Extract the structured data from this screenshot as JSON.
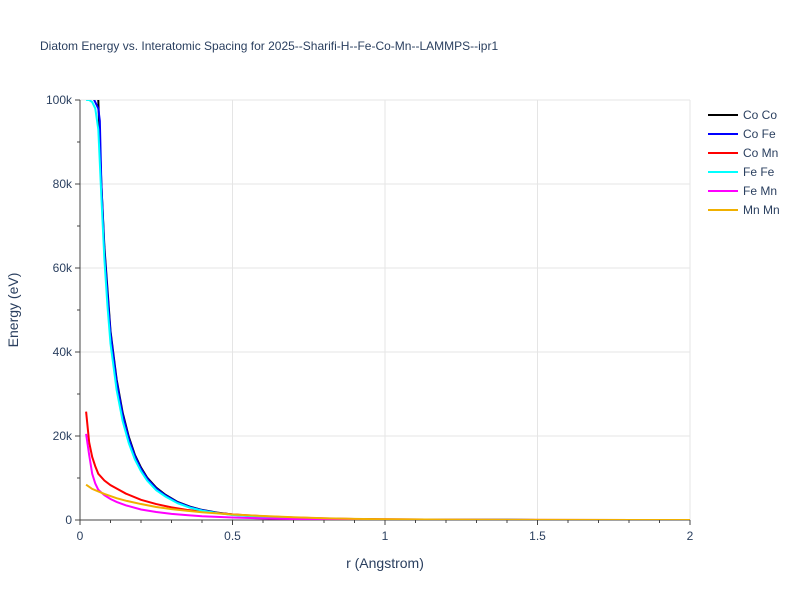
{
  "chart_data": {
    "type": "line",
    "title": "Diatom Energy vs. Interatomic Spacing for 2025--Sharifi-H--Fe-Co-Mn--LAMMPS--ipr1",
    "xlabel": "r (Angstrom)",
    "ylabel": "Energy (eV)",
    "xlim": [
      0,
      2
    ],
    "ylim": [
      0,
      100000
    ],
    "x_ticks": [
      0,
      0.5,
      1,
      1.5,
      2
    ],
    "x_tick_labels": [
      "0",
      "0.5",
      "1",
      "1.5",
      "2"
    ],
    "y_ticks": [
      0,
      20000,
      40000,
      60000,
      80000,
      100000
    ],
    "y_tick_labels": [
      "0",
      "20k",
      "40k",
      "60k",
      "80k",
      "100k"
    ],
    "grid": true,
    "legend_position": "top-right",
    "series": [
      {
        "name": "Co Co",
        "color": "#000000",
        "x": [
          0.04,
          0.06,
          0.07,
          0.08,
          0.09,
          0.1,
          0.12,
          0.14,
          0.16,
          0.18,
          0.2,
          0.22,
          0.25,
          0.28,
          0.32,
          0.36,
          0.4,
          0.45,
          0.5,
          0.6,
          0.7,
          0.8,
          0.9,
          1.0,
          1.2,
          1.5,
          1.8,
          2.0
        ],
        "y": [
          102000,
          100000,
          80000,
          65000,
          55000,
          45000,
          33500,
          25500,
          19800,
          15500,
          12500,
          10100,
          7700,
          6000,
          4300,
          3200,
          2400,
          1750,
          1300,
          800,
          520,
          320,
          180,
          100,
          40,
          10,
          0,
          0
        ]
      },
      {
        "name": "Co Fe",
        "color": "#0000ff",
        "x": [
          0.04,
          0.06,
          0.065,
          0.07,
          0.08,
          0.09,
          0.1,
          0.12,
          0.14,
          0.16,
          0.18,
          0.2,
          0.22,
          0.25,
          0.28,
          0.32,
          0.36,
          0.4,
          0.45,
          0.5,
          0.6,
          0.7,
          0.8,
          0.9,
          1.0,
          1.2,
          1.5,
          1.8,
          2.0
        ],
        "y": [
          101000,
          98000,
          95000,
          80000,
          64000,
          54000,
          44500,
          33000,
          25000,
          19400,
          15200,
          12200,
          9900,
          7500,
          5850,
          4200,
          3100,
          2350,
          1700,
          1250,
          780,
          500,
          310,
          175,
          95,
          38,
          10,
          0,
          0
        ]
      },
      {
        "name": "Co Mn",
        "color": "#ff0000",
        "x": [
          0.02,
          0.03,
          0.04,
          0.05,
          0.06,
          0.08,
          0.1,
          0.12,
          0.15,
          0.2,
          0.25,
          0.3,
          0.35,
          0.4,
          0.5,
          0.6,
          0.7,
          0.8,
          0.9,
          1.0,
          1.2,
          1.5,
          2.0
        ],
        "y": [
          25800,
          18500,
          15000,
          12800,
          11000,
          9400,
          8300,
          7500,
          6300,
          4800,
          3800,
          3000,
          2400,
          2000,
          1350,
          900,
          600,
          380,
          250,
          170,
          80,
          30,
          0
        ]
      },
      {
        "name": "Fe Fe",
        "color": "#00ffff",
        "x": [
          0.02,
          0.03,
          0.04,
          0.05,
          0.06,
          0.07,
          0.08,
          0.09,
          0.1,
          0.12,
          0.14,
          0.16,
          0.18,
          0.2,
          0.22,
          0.25,
          0.28,
          0.32,
          0.36,
          0.4,
          0.45,
          0.5,
          0.6,
          0.7,
          0.8,
          0.9,
          1.0,
          1.2,
          1.5,
          1.8,
          2.0
        ],
        "y": [
          100000,
          100000,
          99500,
          98000,
          93000,
          77000,
          62000,
          51000,
          42000,
          31000,
          23500,
          18300,
          14400,
          11600,
          9400,
          7100,
          5600,
          4000,
          2950,
          2250,
          1650,
          1200,
          750,
          480,
          300,
          170,
          90,
          35,
          10,
          0,
          0
        ]
      },
      {
        "name": "Fe Mn",
        "color": "#ff00ff",
        "x": [
          0.02,
          0.03,
          0.04,
          0.05,
          0.06,
          0.08,
          0.1,
          0.12,
          0.15,
          0.2,
          0.25,
          0.3,
          0.35,
          0.4,
          0.5,
          0.6,
          0.7,
          0.8,
          0.9,
          1.0,
          1.2,
          1.5,
          2.0
        ],
        "y": [
          20500,
          15500,
          11000,
          8700,
          7200,
          5900,
          5000,
          4300,
          3500,
          2500,
          1900,
          1450,
          1150,
          900,
          580,
          380,
          250,
          160,
          100,
          60,
          25,
          5,
          0
        ]
      },
      {
        "name": "Mn Mn",
        "color": "#f0b000",
        "x": [
          0.02,
          0.04,
          0.06,
          0.08,
          0.1,
          0.12,
          0.15,
          0.2,
          0.25,
          0.3,
          0.35,
          0.4,
          0.5,
          0.6,
          0.7,
          0.8,
          0.9,
          1.0,
          1.2,
          1.5,
          2.0
        ],
        "y": [
          8400,
          7400,
          6800,
          6200,
          5700,
          5200,
          4600,
          3800,
          3100,
          2600,
          2200,
          1850,
          1300,
          950,
          650,
          430,
          280,
          180,
          80,
          25,
          0
        ]
      }
    ]
  }
}
